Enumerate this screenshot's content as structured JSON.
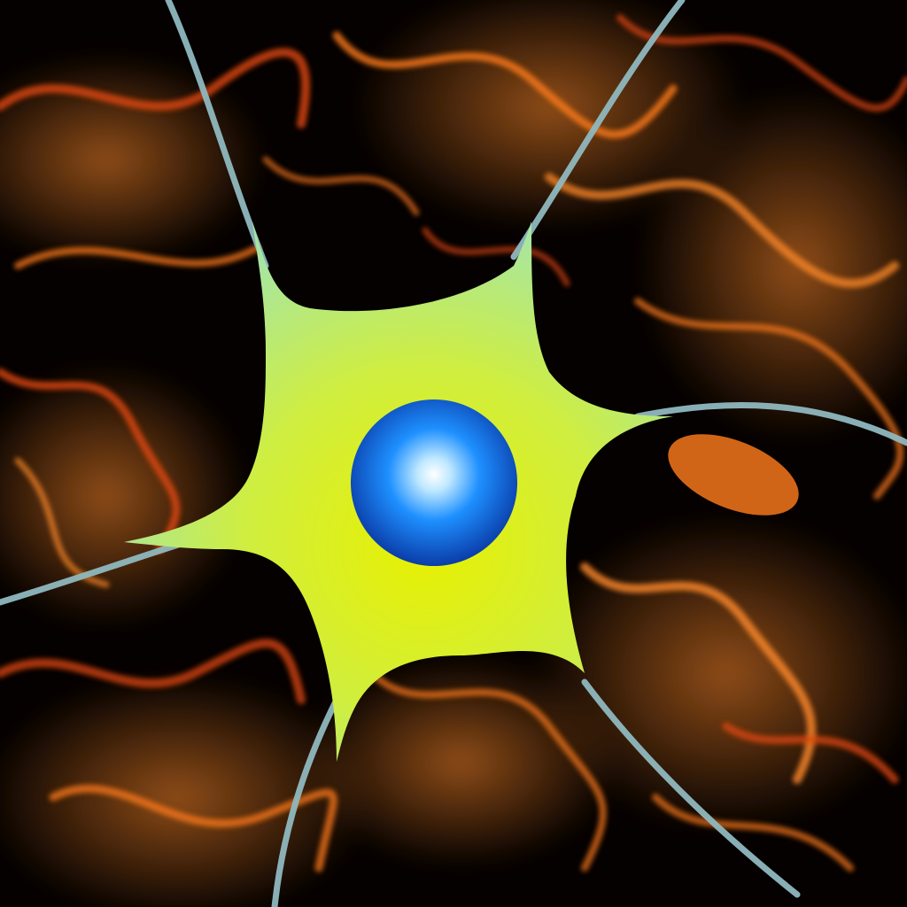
{
  "scene": {
    "subject": "neuron-cell",
    "background": "fire-smoke",
    "colors": {
      "background_dark": "#050100",
      "flame_bright": "#ff7a1a",
      "flame_mid": "#e0470a",
      "flame_deep": "#8a1c02",
      "cell_body_center": "#e8f000",
      "cell_body_edge": "#a8e6a0",
      "dendrite": "#8fb8bf",
      "nucleus_center": "#ffffff",
      "nucleus_mid": "#1e90ff",
      "nucleus_edge": "#0a3ca8"
    },
    "icons": {
      "cell": "neuron-icon",
      "nucleus": "nucleus-icon"
    }
  }
}
